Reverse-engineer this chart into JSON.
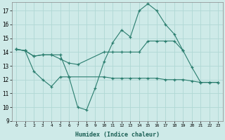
{
  "xlabel": "Humidex (Indice chaleur)",
  "x": [
    0,
    1,
    2,
    3,
    4,
    5,
    6,
    7,
    8,
    9,
    10,
    11,
    12,
    13,
    14,
    15,
    16,
    17,
    18,
    19,
    20,
    21,
    22,
    23
  ],
  "line1": [
    14.2,
    14.1,
    13.7,
    13.8,
    13.8,
    13.8,
    12.2,
    10.0,
    9.8,
    11.4,
    13.3,
    14.7,
    15.6,
    15.1,
    17.0,
    17.5,
    17.0,
    16.0,
    15.3,
    14.1,
    12.9,
    11.8,
    11.8,
    11.8
  ],
  "line2_x": [
    0,
    1,
    2,
    3,
    4,
    5,
    6,
    7,
    10,
    11,
    12,
    13,
    14,
    15,
    16,
    17,
    18,
    19
  ],
  "line2_y": [
    14.2,
    14.1,
    13.7,
    13.8,
    13.8,
    13.5,
    13.2,
    13.1,
    14.0,
    14.0,
    14.0,
    14.0,
    14.0,
    14.8,
    14.8,
    14.8,
    14.8,
    14.1
  ],
  "line3_x": [
    0,
    1,
    2,
    3,
    4,
    5,
    6,
    10,
    11,
    12,
    13,
    14,
    15,
    16,
    17,
    18,
    19,
    20,
    21,
    22,
    23
  ],
  "line3_y": [
    14.2,
    14.1,
    12.6,
    12.0,
    11.5,
    12.2,
    12.2,
    12.2,
    12.1,
    12.1,
    12.1,
    12.1,
    12.1,
    12.1,
    12.0,
    12.0,
    12.0,
    11.9,
    11.8,
    11.8,
    11.8
  ],
  "color": "#2a7d6e",
  "bg_color": "#ceeae8",
  "grid_color": "#b0d8d4",
  "ylim": [
    9,
    17.6
  ],
  "yticks": [
    9,
    10,
    11,
    12,
    13,
    14,
    15,
    16,
    17
  ],
  "figsize": [
    3.2,
    2.0
  ],
  "dpi": 100
}
